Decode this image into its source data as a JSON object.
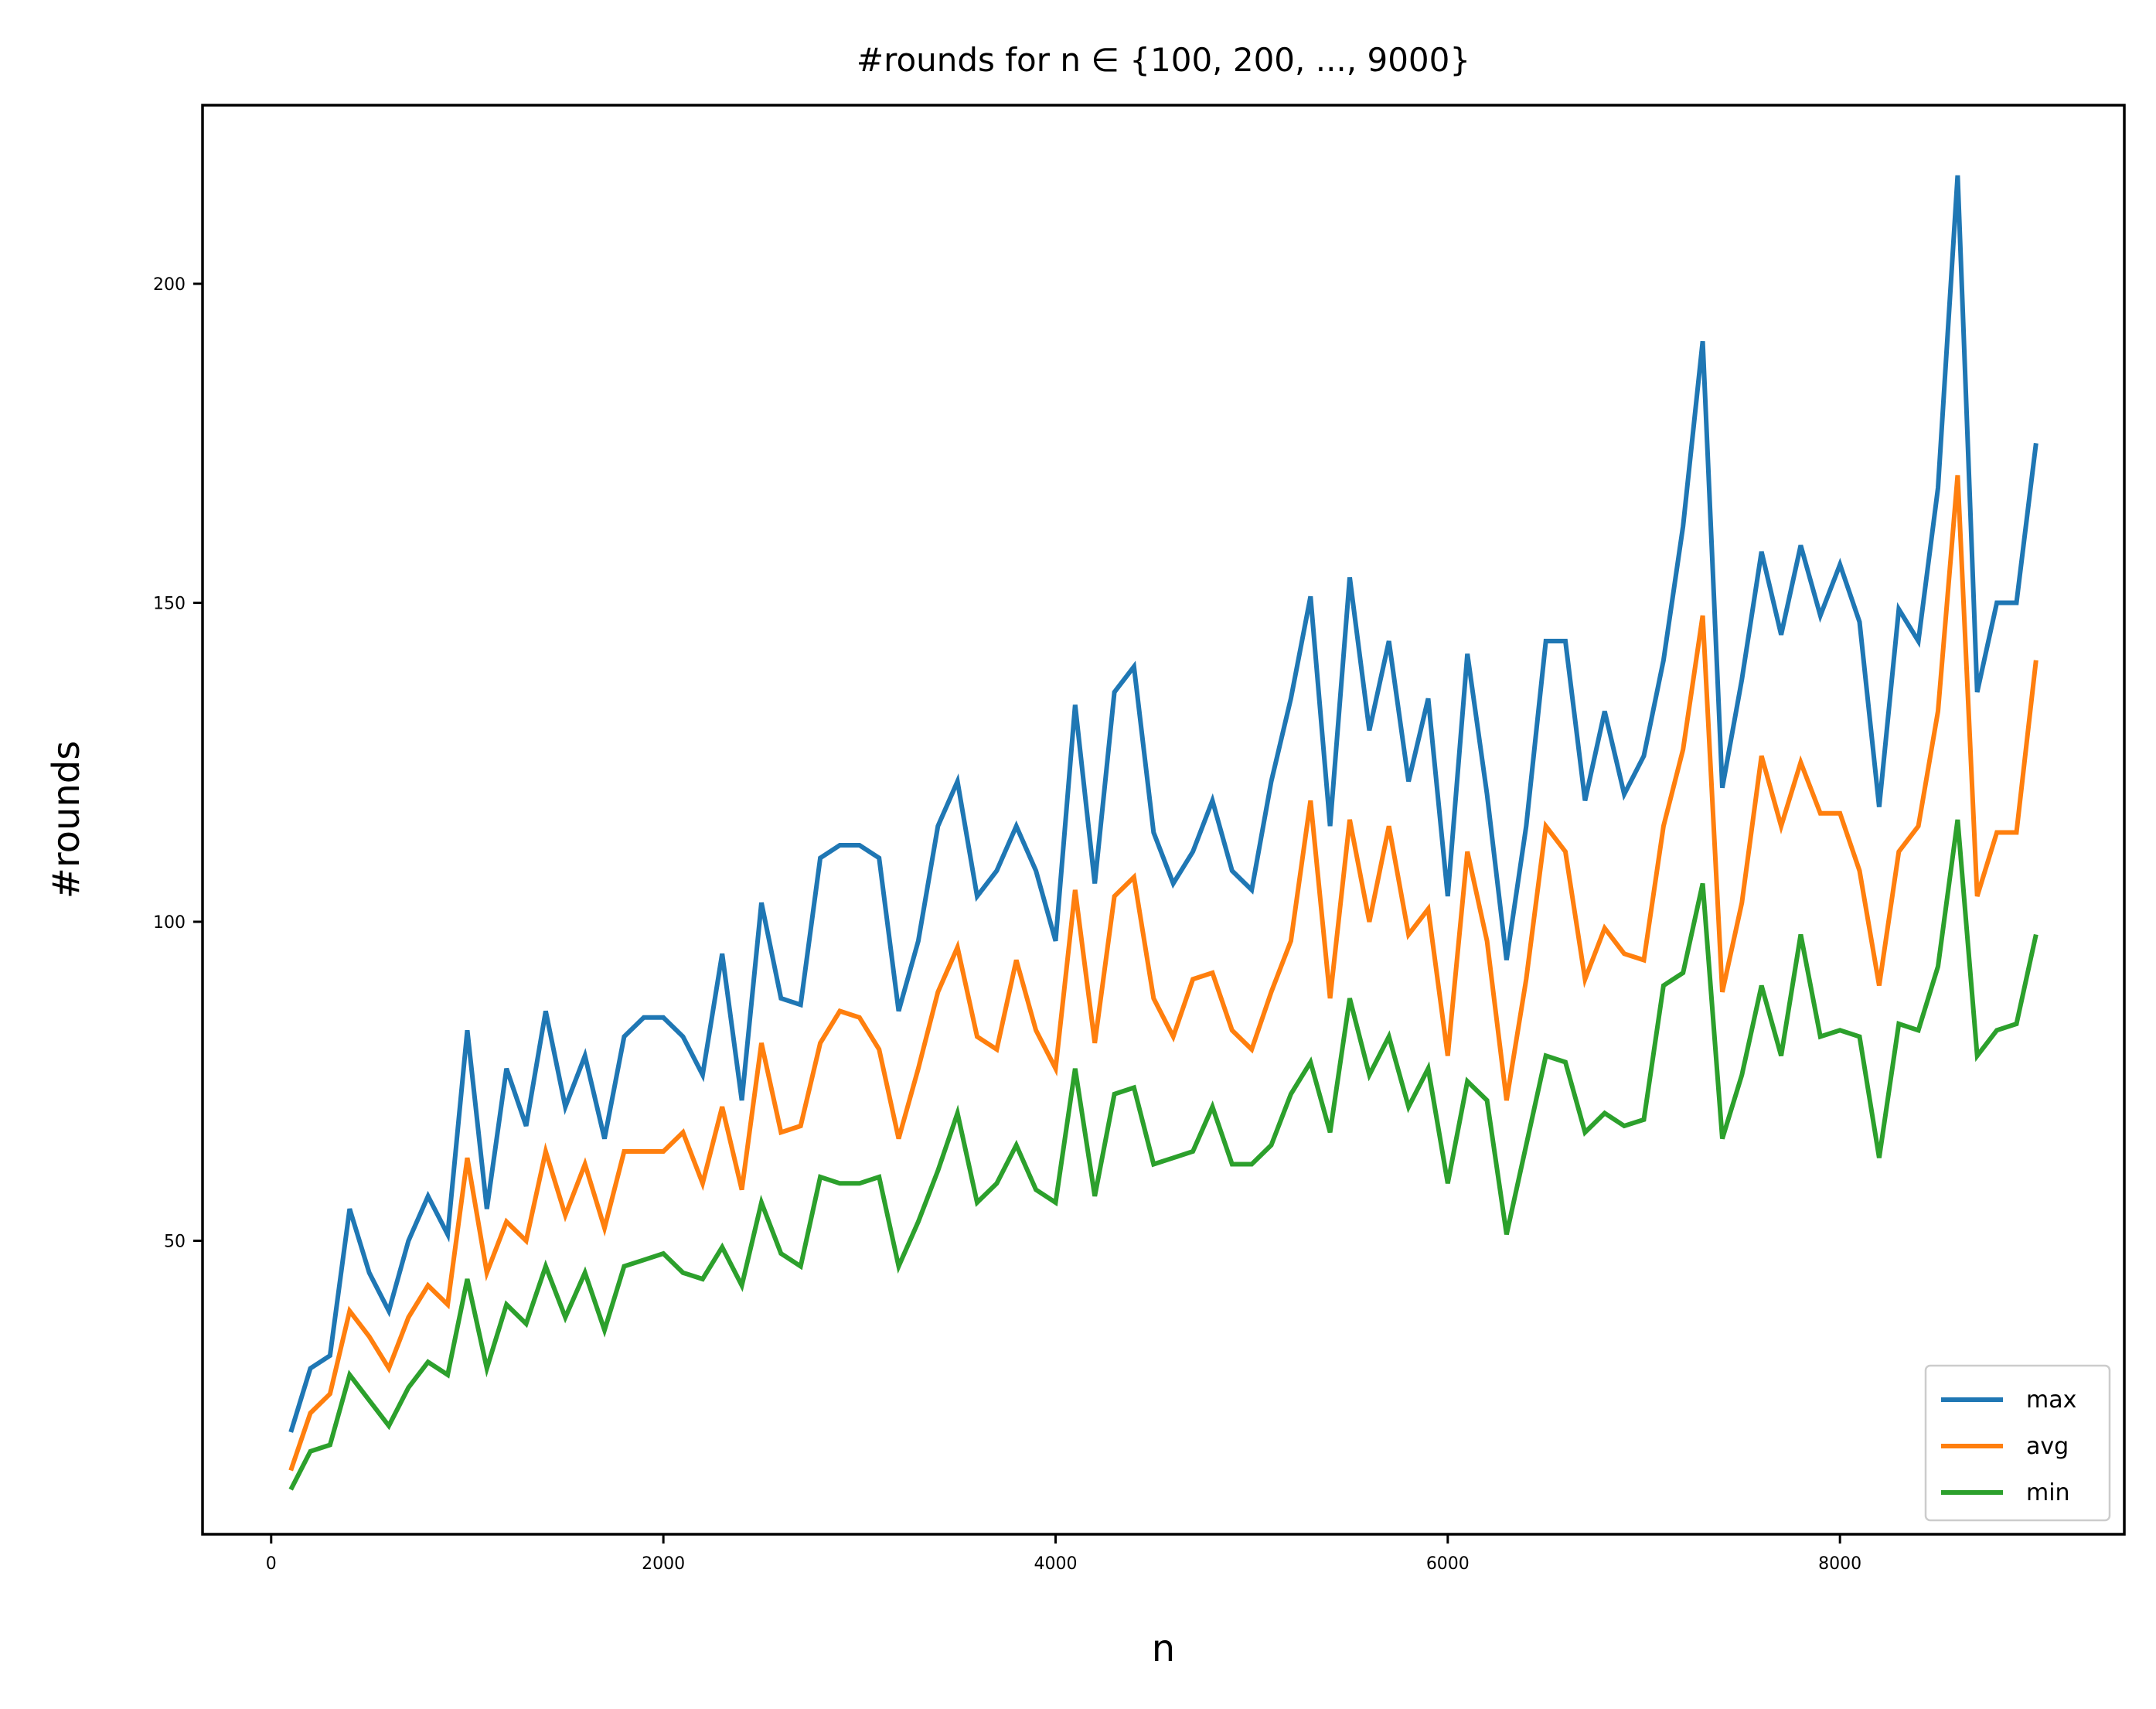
{
  "chart_data": {
    "type": "line",
    "title": "#rounds for n ∈ {100, 200, ..., 9000}",
    "xlabel": "n",
    "ylabel": "#rounds",
    "xlim": [
      -350,
      9450
    ],
    "ylim": [
      4,
      228
    ],
    "xticks": [
      0,
      2000,
      4000,
      6000,
      8000
    ],
    "yticks": [
      50,
      100,
      150,
      200
    ],
    "grid": false,
    "legend_position": "lower right",
    "x": [
      100,
      200,
      300,
      400,
      500,
      600,
      700,
      800,
      900,
      1000,
      1100,
      1200,
      1300,
      1400,
      1500,
      1600,
      1700,
      1800,
      1900,
      2000,
      2100,
      2200,
      2300,
      2400,
      2500,
      2600,
      2700,
      2800,
      2900,
      3000,
      3100,
      3200,
      3300,
      3400,
      3500,
      3600,
      3700,
      3800,
      3900,
      4000,
      4100,
      4200,
      4300,
      4400,
      4500,
      4600,
      4700,
      4800,
      4900,
      5000,
      5100,
      5200,
      5300,
      5400,
      5500,
      5600,
      5700,
      5800,
      5900,
      6000,
      6100,
      6200,
      6300,
      6400,
      6500,
      6600,
      6700,
      6800,
      6900,
      7000,
      7100,
      7200,
      7300,
      7400,
      7500,
      7600,
      7700,
      7800,
      7900,
      8000,
      8100,
      8200,
      8300,
      8400,
      8500,
      8600,
      8700,
      8800,
      8900,
      9000
    ],
    "series": [
      {
        "name": "max",
        "color": "#1f77b4",
        "values": [
          20,
          30,
          32,
          55,
          45,
          39,
          50,
          57,
          51,
          83,
          55,
          77,
          68,
          86,
          71,
          79,
          66,
          82,
          85,
          85,
          82,
          76,
          95,
          72,
          103,
          88,
          87,
          110,
          112,
          112,
          110,
          86,
          97,
          115,
          122,
          104,
          108,
          115,
          108,
          97,
          134,
          106,
          136,
          140,
          114,
          106,
          111,
          119,
          108,
          105,
          122,
          135,
          151,
          115,
          154,
          130,
          144,
          122,
          135,
          104,
          142,
          120,
          94,
          115,
          144,
          144,
          119,
          133,
          120,
          126,
          141,
          162,
          191,
          121,
          138,
          158,
          145,
          159,
          148,
          156,
          147,
          118,
          149,
          144,
          168,
          217,
          136,
          150,
          150,
          175
        ]
      },
      {
        "name": "avg",
        "color": "#ff7f0e",
        "values": [
          14,
          23,
          26,
          39,
          35,
          30,
          38,
          43,
          40,
          63,
          45,
          53,
          50,
          64,
          54,
          62,
          52,
          64,
          64,
          64,
          67,
          59,
          71,
          58,
          81,
          67,
          68,
          81,
          86,
          85,
          80,
          66,
          77,
          89,
          96,
          82,
          80,
          94,
          83,
          77,
          105,
          81,
          104,
          107,
          88,
          82,
          91,
          92,
          83,
          80,
          89,
          97,
          119,
          88,
          116,
          100,
          115,
          98,
          102,
          79,
          111,
          97,
          72,
          91,
          115,
          111,
          91,
          99,
          95,
          94,
          115,
          127,
          148,
          89,
          103,
          126,
          115,
          125,
          117,
          117,
          108,
          90,
          111,
          115,
          133,
          170,
          104,
          114,
          114,
          141
        ]
      },
      {
        "name": "min",
        "color": "#2ca02c",
        "values": [
          11,
          17,
          18,
          29,
          25,
          21,
          27,
          31,
          29,
          44,
          30,
          40,
          37,
          46,
          38,
          45,
          36,
          46,
          47,
          48,
          45,
          44,
          49,
          43,
          56,
          48,
          46,
          60,
          59,
          59,
          60,
          46,
          53,
          61,
          70,
          56,
          59,
          65,
          58,
          56,
          77,
          57,
          73,
          74,
          62,
          63,
          64,
          71,
          62,
          62,
          65,
          73,
          78,
          67,
          88,
          76,
          82,
          71,
          77,
          59,
          75,
          72,
          51,
          65,
          79,
          78,
          67,
          70,
          68,
          69,
          90,
          92,
          106,
          66,
          76,
          90,
          79,
          98,
          82,
          83,
          82,
          63,
          84,
          83,
          93,
          116,
          79,
          83,
          84,
          98
        ]
      }
    ]
  }
}
